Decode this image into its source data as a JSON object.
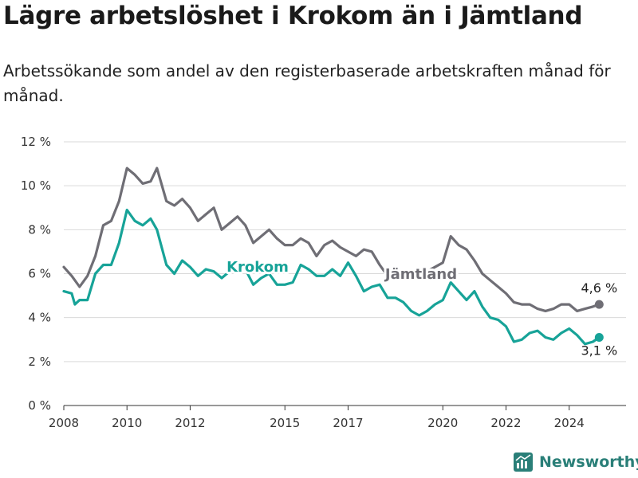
{
  "title": "Lägre arbetslöshet i Krokom än i Jämtland",
  "subtitle": "Arbetssökande som andel av den registerbaserade arbetskraften månad för månad.",
  "brand": "Newsworthy",
  "colors": {
    "krokom": "#17a398",
    "jamtland": "#6f6e75",
    "grid": "#d9d9d9",
    "axis": "#333333"
  },
  "chart_data": {
    "type": "line",
    "xlabel": "",
    "ylabel": "",
    "ylim": [
      0,
      12
    ],
    "yticks": [
      0,
      2,
      4,
      6,
      8,
      10,
      12
    ],
    "ytick_labels": [
      "0 %",
      "2 %",
      "4 %",
      "6 %",
      "8 %",
      "10 %",
      "12 %"
    ],
    "xlim": [
      2008,
      2025.8
    ],
    "xticks": [
      2008,
      2010,
      2012,
      2015,
      2017,
      2020,
      2022,
      2024
    ],
    "grid": true,
    "series": [
      {
        "name": "Jämtland",
        "end_label": "4,6 %",
        "points": [
          [
            2008.0,
            6.3
          ],
          [
            2008.25,
            5.9
          ],
          [
            2008.5,
            5.4
          ],
          [
            2008.75,
            5.9
          ],
          [
            2009.0,
            6.8
          ],
          [
            2009.25,
            8.2
          ],
          [
            2009.5,
            8.4
          ],
          [
            2009.75,
            9.3
          ],
          [
            2010.0,
            10.8
          ],
          [
            2010.25,
            10.5
          ],
          [
            2010.5,
            10.1
          ],
          [
            2010.75,
            10.2
          ],
          [
            2010.95,
            10.8
          ],
          [
            2011.25,
            9.3
          ],
          [
            2011.5,
            9.1
          ],
          [
            2011.75,
            9.4
          ],
          [
            2012.0,
            9.0
          ],
          [
            2012.25,
            8.4
          ],
          [
            2012.5,
            8.7
          ],
          [
            2012.75,
            9.0
          ],
          [
            2013.0,
            8.0
          ],
          [
            2013.25,
            8.3
          ],
          [
            2013.5,
            8.6
          ],
          [
            2013.75,
            8.2
          ],
          [
            2014.0,
            7.4
          ],
          [
            2014.25,
            7.7
          ],
          [
            2014.5,
            8.0
          ],
          [
            2014.75,
            7.6
          ],
          [
            2015.0,
            7.3
          ],
          [
            2015.25,
            7.3
          ],
          [
            2015.5,
            7.6
          ],
          [
            2015.75,
            7.4
          ],
          [
            2016.0,
            6.8
          ],
          [
            2016.25,
            7.3
          ],
          [
            2016.5,
            7.5
          ],
          [
            2016.75,
            7.2
          ],
          [
            2017.0,
            7.0
          ],
          [
            2017.25,
            6.8
          ],
          [
            2017.5,
            7.1
          ],
          [
            2017.75,
            7.0
          ],
          [
            2018.0,
            6.4
          ],
          [
            2018.25,
            5.9
          ],
          [
            2018.5,
            5.9
          ],
          [
            2018.75,
            6.0
          ],
          [
            2019.0,
            6.1
          ],
          [
            2019.25,
            6.0
          ],
          [
            2019.5,
            6.1
          ],
          [
            2019.75,
            6.3
          ],
          [
            2020.0,
            6.5
          ],
          [
            2020.25,
            7.7
          ],
          [
            2020.5,
            7.3
          ],
          [
            2020.75,
            7.1
          ],
          [
            2021.0,
            6.6
          ],
          [
            2021.25,
            6.0
          ],
          [
            2021.5,
            5.7
          ],
          [
            2021.75,
            5.4
          ],
          [
            2022.0,
            5.1
          ],
          [
            2022.25,
            4.7
          ],
          [
            2022.5,
            4.6
          ],
          [
            2022.75,
            4.6
          ],
          [
            2023.0,
            4.4
          ],
          [
            2023.25,
            4.3
          ],
          [
            2023.5,
            4.4
          ],
          [
            2023.75,
            4.6
          ],
          [
            2024.0,
            4.6
          ],
          [
            2024.25,
            4.3
          ],
          [
            2024.5,
            4.4
          ],
          [
            2024.75,
            4.5
          ],
          [
            2024.95,
            4.6
          ]
        ]
      },
      {
        "name": "Krokom",
        "end_label": "3,1 %",
        "points": [
          [
            2008.0,
            5.2
          ],
          [
            2008.25,
            5.1
          ],
          [
            2008.35,
            4.6
          ],
          [
            2008.5,
            4.8
          ],
          [
            2008.75,
            4.8
          ],
          [
            2009.0,
            6.0
          ],
          [
            2009.25,
            6.4
          ],
          [
            2009.5,
            6.4
          ],
          [
            2009.75,
            7.4
          ],
          [
            2010.0,
            8.9
          ],
          [
            2010.25,
            8.4
          ],
          [
            2010.5,
            8.2
          ],
          [
            2010.75,
            8.5
          ],
          [
            2010.95,
            8.0
          ],
          [
            2011.25,
            6.4
          ],
          [
            2011.5,
            6.0
          ],
          [
            2011.75,
            6.6
          ],
          [
            2012.0,
            6.3
          ],
          [
            2012.25,
            5.9
          ],
          [
            2012.5,
            6.2
          ],
          [
            2012.75,
            6.1
          ],
          [
            2013.0,
            5.8
          ],
          [
            2013.25,
            6.1
          ],
          [
            2013.5,
            6.6
          ],
          [
            2013.75,
            6.2
          ],
          [
            2014.0,
            5.5
          ],
          [
            2014.25,
            5.8
          ],
          [
            2014.5,
            6.0
          ],
          [
            2014.75,
            5.5
          ],
          [
            2015.0,
            5.5
          ],
          [
            2015.25,
            5.6
          ],
          [
            2015.5,
            6.4
          ],
          [
            2015.75,
            6.2
          ],
          [
            2016.0,
            5.9
          ],
          [
            2016.25,
            5.9
          ],
          [
            2016.5,
            6.2
          ],
          [
            2016.75,
            5.9
          ],
          [
            2017.0,
            6.5
          ],
          [
            2017.25,
            5.9
          ],
          [
            2017.5,
            5.2
          ],
          [
            2017.75,
            5.4
          ],
          [
            2018.0,
            5.5
          ],
          [
            2018.25,
            4.9
          ],
          [
            2018.5,
            4.9
          ],
          [
            2018.75,
            4.7
          ],
          [
            2019.0,
            4.3
          ],
          [
            2019.25,
            4.1
          ],
          [
            2019.5,
            4.3
          ],
          [
            2019.75,
            4.6
          ],
          [
            2020.0,
            4.8
          ],
          [
            2020.25,
            5.6
          ],
          [
            2020.5,
            5.2
          ],
          [
            2020.75,
            4.8
          ],
          [
            2021.0,
            5.2
          ],
          [
            2021.25,
            4.5
          ],
          [
            2021.5,
            4.0
          ],
          [
            2021.75,
            3.9
          ],
          [
            2022.0,
            3.6
          ],
          [
            2022.25,
            2.9
          ],
          [
            2022.5,
            3.0
          ],
          [
            2022.75,
            3.3
          ],
          [
            2023.0,
            3.4
          ],
          [
            2023.25,
            3.1
          ],
          [
            2023.5,
            3.0
          ],
          [
            2023.75,
            3.3
          ],
          [
            2024.0,
            3.5
          ],
          [
            2024.25,
            3.2
          ],
          [
            2024.5,
            2.8
          ],
          [
            2024.75,
            2.9
          ],
          [
            2024.95,
            3.1
          ]
        ]
      }
    ],
    "annotations": [
      {
        "text": "Krokom",
        "series": "Krokom"
      },
      {
        "text": "Jämtland",
        "series": "Jämtland"
      }
    ]
  }
}
